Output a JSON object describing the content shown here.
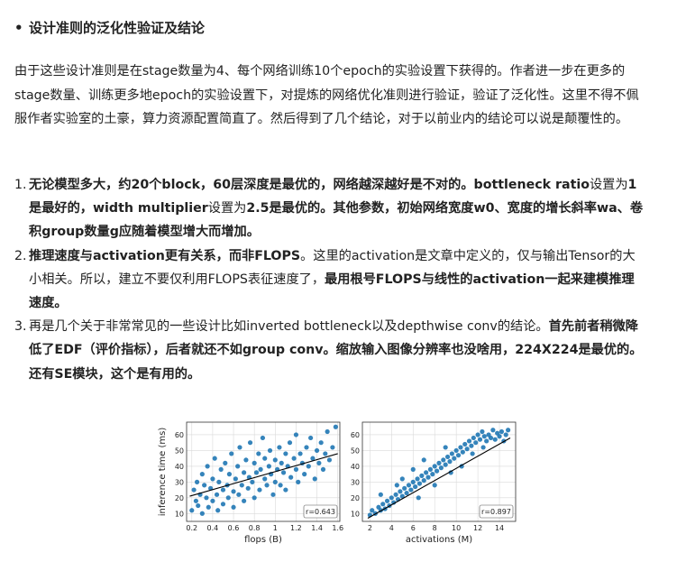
{
  "heading": {
    "bullet": "•",
    "text": "设计准则的泛化性验证及结论"
  },
  "paragraph": "由于这些设计准则是在stage数量为4、每个网络训练10个epoch的实验设置下获得的。作者进一步在更多的stage数量、训练更多地epoch的实验设置下，对提炼的网络优化准则进行验证，验证了泛化性。这里不得不佩服作者实验室的土豪，算力资源配置简直了。然后得到了几个结论，对于以前业内的结论可以说是颠覆性的。",
  "list": [
    {
      "num": "1.",
      "segments": [
        {
          "text": "无论模型多大，约20个block，60层深度是最优的，网络越深越好是不对的。bottleneck ratio",
          "bold": true
        },
        {
          "text": "设置为",
          "bold": false
        },
        {
          "text": "1是最好的，width multiplier",
          "bold": true
        },
        {
          "text": "设置为",
          "bold": false
        },
        {
          "text": "2.5是最优的。其他参数，初始网络宽度w0、宽度的增长斜率wa、卷积group数量g应随着模型增大而增加。",
          "bold": true
        }
      ]
    },
    {
      "num": "2.",
      "segments": [
        {
          "text": "推理速度与activation更有关系，而非FLOPS",
          "bold": true
        },
        {
          "text": "。这里的activation是文章中定义的，仅与输出Tensor的大小相关。所以，建立不要仅利用FLOPS表征速度了，",
          "bold": false
        },
        {
          "text": "最用根号FLOPS与线性的activation一起来建模推理速度。",
          "bold": true
        }
      ]
    },
    {
      "num": "3.",
      "segments": [
        {
          "text": "再是几个关于非常常见的一些设计比如inverted bottleneck以及depthwise conv的结论。",
          "bold": false
        },
        {
          "text": "首先前者稍微降低了EDF（评价指标），后者就还不如group conv。缩放输入图像分辨率也没啥用，224X224是最优的。还有SE模块，这个是有用的。",
          "bold": true
        }
      ]
    }
  ],
  "chart_data": [
    {
      "type": "scatter",
      "xlabel": "flops (B)",
      "ylabel": "inference time (ms)",
      "xlim": [
        0.15,
        1.62
      ],
      "ylim": [
        5,
        68
      ],
      "xticks": [
        0.2,
        0.4,
        0.6,
        0.8,
        1.0,
        1.2,
        1.4,
        1.6
      ],
      "yticks": [
        10,
        20,
        30,
        40,
        50,
        60
      ],
      "annotation": "r=0.643",
      "point_color": "#1f77b4",
      "points": [
        [
          0.2,
          12
        ],
        [
          0.22,
          25
        ],
        [
          0.24,
          18
        ],
        [
          0.25,
          30
        ],
        [
          0.26,
          15
        ],
        [
          0.28,
          22
        ],
        [
          0.3,
          35
        ],
        [
          0.3,
          10
        ],
        [
          0.32,
          28
        ],
        [
          0.34,
          20
        ],
        [
          0.35,
          40
        ],
        [
          0.36,
          14
        ],
        [
          0.38,
          26
        ],
        [
          0.4,
          32
        ],
        [
          0.4,
          18
        ],
        [
          0.42,
          45
        ],
        [
          0.44,
          22
        ],
        [
          0.45,
          12
        ],
        [
          0.46,
          30
        ],
        [
          0.48,
          38
        ],
        [
          0.5,
          25
        ],
        [
          0.5,
          16
        ],
        [
          0.52,
          42
        ],
        [
          0.54,
          28
        ],
        [
          0.55,
          20
        ],
        [
          0.56,
          35
        ],
        [
          0.58,
          48
        ],
        [
          0.6,
          24
        ],
        [
          0.6,
          14
        ],
        [
          0.62,
          32
        ],
        [
          0.64,
          40
        ],
        [
          0.65,
          22
        ],
        [
          0.66,
          52
        ],
        [
          0.68,
          28
        ],
        [
          0.7,
          36
        ],
        [
          0.7,
          18
        ],
        [
          0.72,
          44
        ],
        [
          0.74,
          26
        ],
        [
          0.75,
          33
        ],
        [
          0.76,
          55
        ],
        [
          0.78,
          30
        ],
        [
          0.8,
          42
        ],
        [
          0.8,
          20
        ],
        [
          0.82,
          36
        ],
        [
          0.84,
          48
        ],
        [
          0.85,
          25
        ],
        [
          0.86,
          38
        ],
        [
          0.88,
          58
        ],
        [
          0.9,
          32
        ],
        [
          0.9,
          45
        ],
        [
          0.92,
          28
        ],
        [
          0.94,
          40
        ],
        [
          0.95,
          50
        ],
        [
          0.96,
          35
        ],
        [
          0.98,
          22
        ],
        [
          1.0,
          44
        ],
        [
          1.0,
          30
        ],
        [
          1.02,
          38
        ],
        [
          1.04,
          52
        ],
        [
          1.05,
          28
        ],
        [
          1.06,
          42
        ],
        [
          1.08,
          36
        ],
        [
          1.1,
          48
        ],
        [
          1.1,
          25
        ],
        [
          1.12,
          40
        ],
        [
          1.14,
          55
        ],
        [
          1.15,
          33
        ],
        [
          1.18,
          45
        ],
        [
          1.2,
          38
        ],
        [
          1.2,
          60
        ],
        [
          1.22,
          30
        ],
        [
          1.24,
          48
        ],
        [
          1.26,
          42
        ],
        [
          1.28,
          35
        ],
        [
          1.3,
          52
        ],
        [
          1.32,
          40
        ],
        [
          1.34,
          58
        ],
        [
          1.36,
          45
        ],
        [
          1.38,
          32
        ],
        [
          1.4,
          50
        ],
        [
          1.42,
          42
        ],
        [
          1.44,
          55
        ],
        [
          1.46,
          38
        ],
        [
          1.48,
          48
        ],
        [
          1.5,
          62
        ],
        [
          1.52,
          44
        ],
        [
          1.55,
          52
        ],
        [
          1.58,
          65
        ]
      ],
      "fit": [
        [
          0.18,
          21
        ],
        [
          1.6,
          48
        ]
      ]
    },
    {
      "type": "scatter",
      "xlabel": "activations (M)",
      "ylabel": "",
      "xlim": [
        1.3,
        15.5
      ],
      "ylim": [
        5,
        68
      ],
      "xticks": [
        2,
        4,
        6,
        8,
        10,
        12,
        14
      ],
      "yticks": [
        10,
        20,
        30,
        40,
        50,
        60
      ],
      "annotation": "r=0.897",
      "point_color": "#1f77b4",
      "points": [
        [
          2.0,
          9
        ],
        [
          2.2,
          12
        ],
        [
          2.5,
          10
        ],
        [
          2.8,
          14
        ],
        [
          3.0,
          12
        ],
        [
          3.2,
          16
        ],
        [
          3.4,
          13
        ],
        [
          3.6,
          18
        ],
        [
          3.8,
          15
        ],
        [
          4.0,
          20
        ],
        [
          4.2,
          17
        ],
        [
          4.4,
          22
        ],
        [
          4.6,
          19
        ],
        [
          4.8,
          24
        ],
        [
          5.0,
          21
        ],
        [
          5.2,
          26
        ],
        [
          5.4,
          23
        ],
        [
          5.6,
          28
        ],
        [
          5.8,
          25
        ],
        [
          6.0,
          30
        ],
        [
          6.2,
          27
        ],
        [
          6.4,
          32
        ],
        [
          6.6,
          29
        ],
        [
          6.8,
          34
        ],
        [
          7.0,
          31
        ],
        [
          7.2,
          36
        ],
        [
          7.4,
          33
        ],
        [
          7.6,
          38
        ],
        [
          7.8,
          35
        ],
        [
          8.0,
          40
        ],
        [
          8.2,
          37
        ],
        [
          8.4,
          42
        ],
        [
          8.6,
          39
        ],
        [
          8.8,
          44
        ],
        [
          9.0,
          41
        ],
        [
          9.2,
          46
        ],
        [
          9.4,
          43
        ],
        [
          9.6,
          48
        ],
        [
          9.8,
          45
        ],
        [
          10.0,
          50
        ],
        [
          10.2,
          47
        ],
        [
          10.4,
          52
        ],
        [
          10.6,
          49
        ],
        [
          10.8,
          54
        ],
        [
          11.0,
          51
        ],
        [
          11.2,
          56
        ],
        [
          11.4,
          53
        ],
        [
          11.6,
          58
        ],
        [
          11.8,
          55
        ],
        [
          12.0,
          60
        ],
        [
          12.2,
          57
        ],
        [
          12.4,
          62
        ],
        [
          12.6,
          59
        ],
        [
          12.8,
          56
        ],
        [
          13.0,
          60
        ],
        [
          13.2,
          58
        ],
        [
          13.4,
          63
        ],
        [
          13.6,
          57
        ],
        [
          13.8,
          61
        ],
        [
          14.0,
          59
        ],
        [
          14.2,
          62
        ],
        [
          14.4,
          56
        ],
        [
          14.6,
          60
        ],
        [
          14.8,
          63
        ],
        [
          3.0,
          22
        ],
        [
          5.0,
          32
        ],
        [
          6.5,
          20
        ],
        [
          8.0,
          28
        ],
        [
          9.5,
          36
        ],
        [
          10.5,
          40
        ],
        [
          4.5,
          28
        ],
        [
          7.0,
          44
        ],
        [
          11.5,
          48
        ],
        [
          12.5,
          52
        ],
        [
          9.0,
          52
        ],
        [
          6.0,
          38
        ]
      ],
      "fit": [
        [
          1.8,
          7
        ],
        [
          15.0,
          58
        ]
      ]
    }
  ]
}
